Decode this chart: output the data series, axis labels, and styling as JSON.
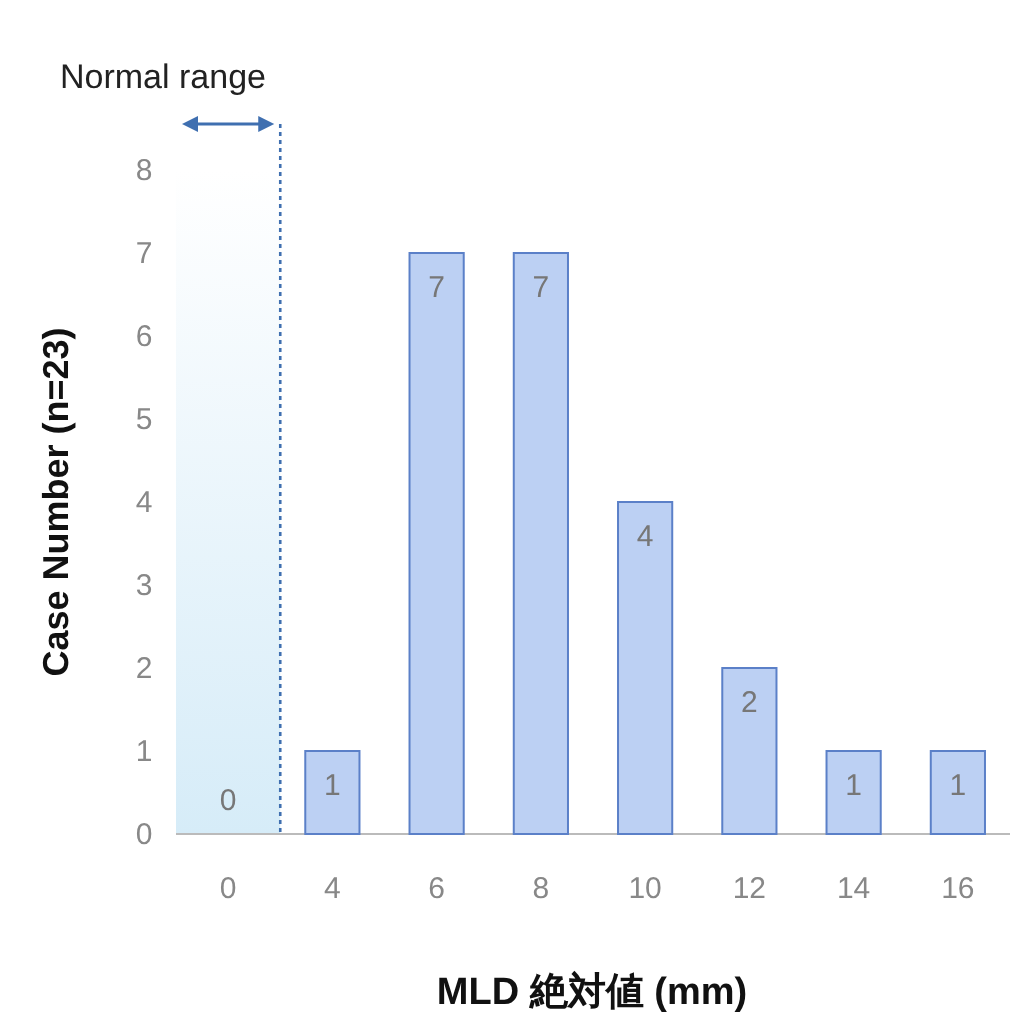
{
  "chart_data": {
    "type": "bar",
    "xlabel": "MLD 絶対値 (mm)",
    "ylabel": "Case Number (n=23)",
    "categories": [
      "0",
      "4",
      "6",
      "8",
      "10",
      "12",
      "14",
      "16"
    ],
    "values": [
      0,
      1,
      7,
      7,
      4,
      2,
      1,
      1
    ],
    "color": "#bcd0f3",
    "ylim": [
      0,
      8
    ],
    "yticks": [
      0,
      1,
      2,
      3,
      4,
      5,
      6,
      7,
      8
    ],
    "data_labels": true,
    "bands": [
      {
        "axis": "x",
        "from": "0",
        "to": "0",
        "label": "Normal range",
        "color": "#d6ecf8"
      }
    ]
  }
}
